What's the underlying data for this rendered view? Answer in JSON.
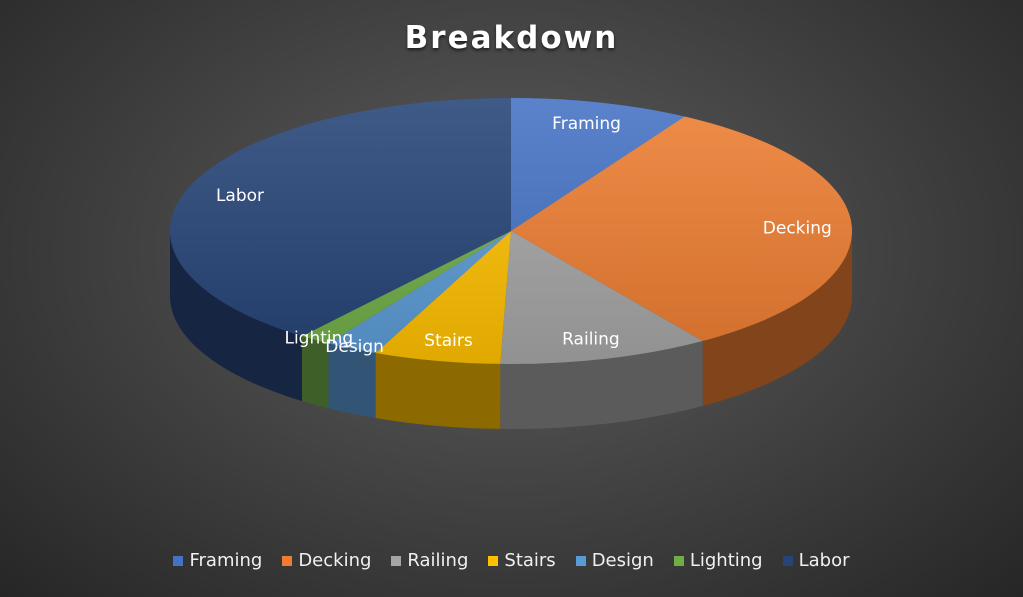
{
  "chart_data": {
    "type": "pie",
    "title": "Breakdown",
    "legend_position": "bottom",
    "slices": [
      {
        "name": "Framing",
        "value": 8.5,
        "color": "#4472C4"
      },
      {
        "name": "Decking",
        "value": 32,
        "color": "#ED7D31"
      },
      {
        "name": "Railing",
        "value": 10,
        "color": "#A5A5A5"
      },
      {
        "name": "Stairs",
        "value": 6,
        "color": "#FFC000"
      },
      {
        "name": "Design",
        "value": 2.5,
        "color": "#5B9BD5"
      },
      {
        "name": "Lighting",
        "value": 1.5,
        "color": "#70AD47"
      },
      {
        "name": "Labor",
        "value": 39.5,
        "color": "#264478"
      }
    ]
  }
}
